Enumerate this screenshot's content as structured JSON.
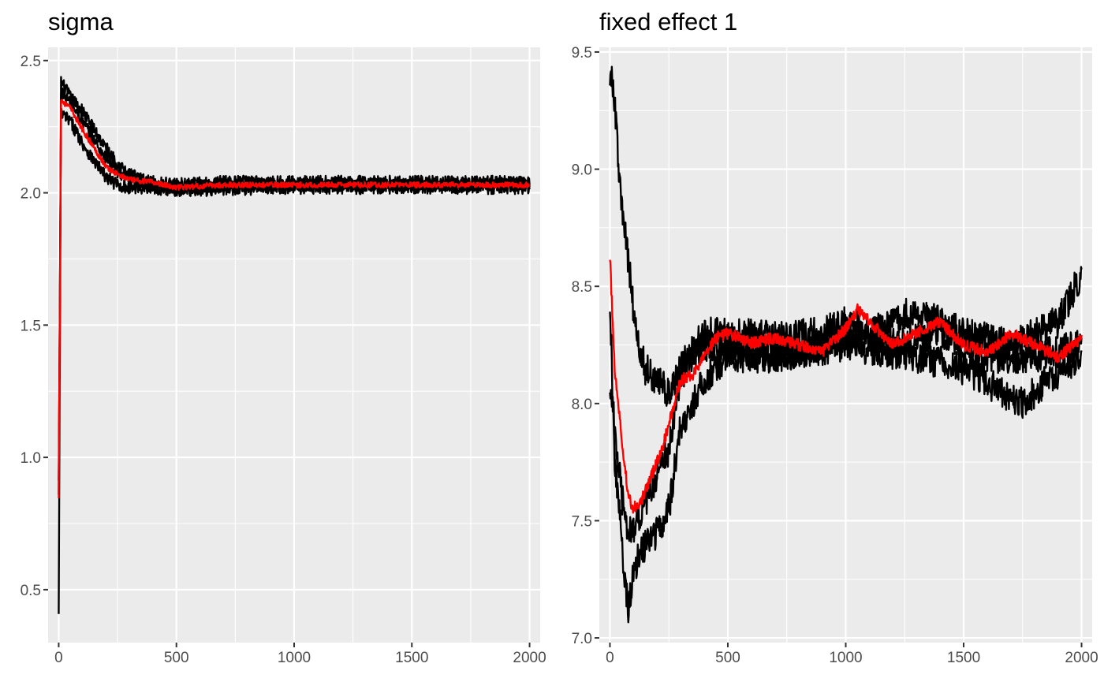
{
  "chart_data": [
    {
      "type": "line",
      "title": "sigma",
      "xlabel": "",
      "ylabel": "",
      "xlim": [
        -45,
        2045
      ],
      "ylim": [
        0.3,
        2.55
      ],
      "x_ticks": [
        0,
        500,
        1000,
        1500,
        2000
      ],
      "x_tick_labels": [
        "0",
        "500",
        "1000",
        "1500",
        "2000"
      ],
      "y_ticks": [
        0.5,
        1.0,
        1.5,
        2.0,
        2.5
      ],
      "y_tick_labels": [
        "0.5",
        "1.0",
        "1.5",
        "2.0",
        "2.5"
      ],
      "grid": true,
      "series": [
        {
          "color": "#000000",
          "points": [
            [
              0,
              0.4
            ],
            [
              10,
              2.42
            ],
            [
              50,
              2.36
            ],
            [
              100,
              2.31
            ],
            [
              150,
              2.24
            ],
            [
              200,
              2.17
            ],
            [
              250,
              2.11
            ],
            [
              300,
              2.07
            ],
            [
              350,
              2.05
            ],
            [
              400,
              2.04
            ],
            [
              500,
              2.03
            ],
            [
              700,
              2.04
            ],
            [
              1000,
              2.04
            ],
            [
              1250,
              2.04
            ],
            [
              1500,
              2.04
            ],
            [
              1750,
              2.04
            ],
            [
              2000,
              2.04
            ]
          ],
          "noise": 0.025
        },
        {
          "color": "#000000",
          "points": [
            [
              0,
              0.85
            ],
            [
              10,
              2.38
            ],
            [
              50,
              2.34
            ],
            [
              100,
              2.27
            ],
            [
              150,
              2.2
            ],
            [
              200,
              2.13
            ],
            [
              250,
              2.08
            ],
            [
              300,
              2.05
            ],
            [
              400,
              2.03
            ],
            [
              500,
              2.02
            ],
            [
              700,
              2.03
            ],
            [
              1000,
              2.03
            ],
            [
              1500,
              2.03
            ],
            [
              2000,
              2.03
            ]
          ],
          "noise": 0.025
        },
        {
          "color": "#000000",
          "points": [
            [
              0,
              0.9
            ],
            [
              10,
              2.3
            ],
            [
              50,
              2.27
            ],
            [
              100,
              2.19
            ],
            [
              150,
              2.12
            ],
            [
              200,
              2.06
            ],
            [
              250,
              2.03
            ],
            [
              300,
              2.02
            ],
            [
              400,
              2.02
            ],
            [
              500,
              2.01
            ],
            [
              1000,
              2.02
            ],
            [
              1500,
              2.02
            ],
            [
              2000,
              2.02
            ]
          ],
          "noise": 0.025
        },
        {
          "color": "#ff0000",
          "points": [
            [
              0,
              0.84
            ],
            [
              10,
              2.35
            ],
            [
              50,
              2.32
            ],
            [
              100,
              2.24
            ],
            [
              150,
              2.17
            ],
            [
              200,
              2.1
            ],
            [
              250,
              2.07
            ],
            [
              300,
              2.05
            ],
            [
              400,
              2.04
            ],
            [
              500,
              2.02
            ],
            [
              700,
              2.03
            ],
            [
              1000,
              2.03
            ],
            [
              1500,
              2.03
            ],
            [
              2000,
              2.03
            ]
          ],
          "noise": 0.01
        }
      ]
    },
    {
      "type": "line",
      "title": "fixed effect 1",
      "xlabel": "",
      "ylabel": "",
      "xlim": [
        -45,
        2045
      ],
      "ylim": [
        6.98,
        9.52
      ],
      "x_ticks": [
        0,
        500,
        1000,
        1500,
        2000
      ],
      "x_tick_labels": [
        "0",
        "500",
        "1000",
        "1500",
        "2000"
      ],
      "y_ticks": [
        7.0,
        7.5,
        8.0,
        8.5,
        9.0,
        9.5
      ],
      "y_tick_labels": [
        "7.0",
        "7.5",
        "8.0",
        "8.5",
        "9.0",
        "9.5"
      ],
      "grid": true,
      "series": [
        {
          "color": "#000000",
          "points": [
            [
              0,
              9.42
            ],
            [
              20,
              9.3
            ],
            [
              40,
              8.95
            ],
            [
              60,
              8.75
            ],
            [
              80,
              8.6
            ],
            [
              100,
              8.4
            ],
            [
              120,
              8.25
            ],
            [
              150,
              8.15
            ],
            [
              200,
              8.1
            ],
            [
              250,
              8.05
            ],
            [
              300,
              8.15
            ],
            [
              400,
              8.3
            ],
            [
              500,
              8.3
            ],
            [
              700,
              8.28
            ],
            [
              900,
              8.3
            ],
            [
              1000,
              8.35
            ],
            [
              1100,
              8.3
            ],
            [
              1300,
              8.4
            ],
            [
              1500,
              8.3
            ],
            [
              1700,
              8.25
            ],
            [
              1900,
              8.35
            ],
            [
              2000,
              8.55
            ]
          ],
          "noise": 0.07
        },
        {
          "color": "#000000",
          "points": [
            [
              0,
              8.45
            ],
            [
              20,
              7.75
            ],
            [
              40,
              7.55
            ],
            [
              60,
              7.25
            ],
            [
              80,
              7.12
            ],
            [
              100,
              7.3
            ],
            [
              150,
              7.4
            ],
            [
              200,
              7.45
            ],
            [
              250,
              7.55
            ],
            [
              300,
              7.9
            ],
            [
              350,
              8.0
            ],
            [
              400,
              8.1
            ],
            [
              500,
              8.2
            ],
            [
              700,
              8.2
            ],
            [
              1000,
              8.25
            ],
            [
              1300,
              8.2
            ],
            [
              1500,
              8.15
            ],
            [
              1750,
              8.0
            ],
            [
              1850,
              8.1
            ],
            [
              2000,
              8.2
            ]
          ],
          "noise": 0.07
        },
        {
          "color": "#000000",
          "points": [
            [
              0,
              8.1
            ],
            [
              20,
              7.9
            ],
            [
              50,
              7.6
            ],
            [
              80,
              7.45
            ],
            [
              120,
              7.5
            ],
            [
              160,
              7.6
            ],
            [
              200,
              7.7
            ],
            [
              250,
              7.8
            ],
            [
              300,
              8.1
            ],
            [
              350,
              8.2
            ],
            [
              400,
              8.25
            ],
            [
              500,
              8.25
            ],
            [
              700,
              8.2
            ],
            [
              900,
              8.25
            ],
            [
              1000,
              8.3
            ],
            [
              1200,
              8.25
            ],
            [
              1400,
              8.3
            ],
            [
              1600,
              8.2
            ],
            [
              1800,
              8.2
            ],
            [
              2000,
              8.25
            ]
          ],
          "noise": 0.07
        },
        {
          "color": "#ff0000",
          "points": [
            [
              0,
              8.63
            ],
            [
              20,
              8.15
            ],
            [
              40,
              7.95
            ],
            [
              60,
              7.75
            ],
            [
              80,
              7.6
            ],
            [
              100,
              7.55
            ],
            [
              140,
              7.6
            ],
            [
              180,
              7.7
            ],
            [
              220,
              7.8
            ],
            [
              260,
              7.95
            ],
            [
              300,
              8.1
            ],
            [
              350,
              8.12
            ],
            [
              400,
              8.2
            ],
            [
              450,
              8.28
            ],
            [
              500,
              8.3
            ],
            [
              600,
              8.26
            ],
            [
              700,
              8.28
            ],
            [
              800,
              8.25
            ],
            [
              900,
              8.22
            ],
            [
              1000,
              8.32
            ],
            [
              1050,
              8.4
            ],
            [
              1100,
              8.35
            ],
            [
              1200,
              8.25
            ],
            [
              1300,
              8.3
            ],
            [
              1400,
              8.35
            ],
            [
              1500,
              8.25
            ],
            [
              1600,
              8.22
            ],
            [
              1700,
              8.3
            ],
            [
              1800,
              8.25
            ],
            [
              1900,
              8.2
            ],
            [
              2000,
              8.28
            ]
          ],
          "noise": 0.025
        }
      ]
    }
  ]
}
